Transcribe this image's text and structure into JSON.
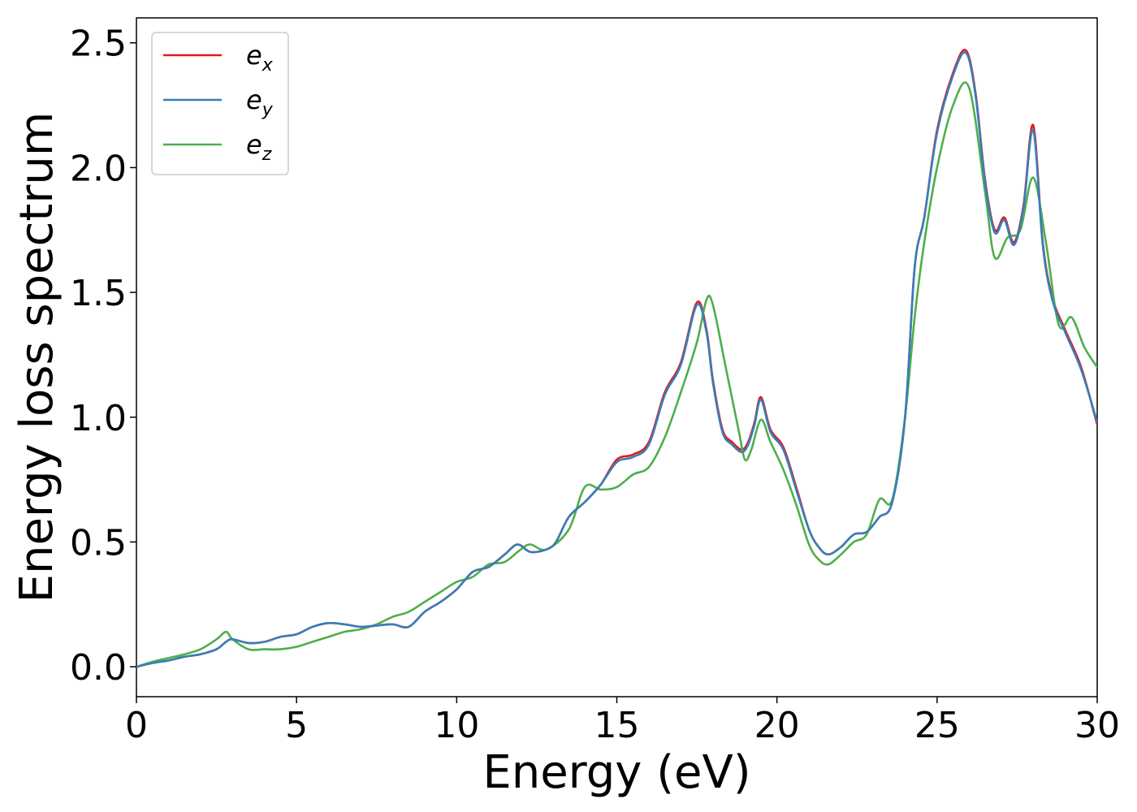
{
  "chart_data": {
    "type": "line",
    "xlabel": "Energy (eV)",
    "ylabel": "Energy loss spectrum",
    "xlim": [
      0,
      30
    ],
    "ylim": [
      -0.12,
      2.6
    ],
    "xticks": [
      0,
      5,
      10,
      15,
      20,
      25,
      30
    ],
    "xtick_labels": [
      "0",
      "5",
      "10",
      "15",
      "20",
      "25",
      "30"
    ],
    "yticks": [
      0.0,
      0.5,
      1.0,
      1.5,
      2.0,
      2.5
    ],
    "ytick_labels": [
      "0.0",
      "0.5",
      "1.0",
      "1.5",
      "2.0",
      "2.5"
    ],
    "grid": false,
    "legend_position": "top-left",
    "series": [
      {
        "name_base": "e",
        "name_sub": "x",
        "color": "#e41a1c",
        "x": [
          0,
          0.5,
          1,
          1.5,
          2,
          2.5,
          2.8,
          3,
          3.5,
          4,
          4.5,
          5,
          5.5,
          6,
          6.5,
          7,
          7.5,
          8,
          8.5,
          9,
          9.5,
          10,
          10.5,
          11,
          11.5,
          11.9,
          12.3,
          12.8,
          13.1,
          13.5,
          14,
          14.5,
          15,
          15.5,
          16,
          16.5,
          17,
          17.5,
          17.8,
          18,
          18.3,
          18.6,
          18.9,
          19.1,
          19.3,
          19.5,
          19.8,
          20.2,
          20.6,
          21,
          21.3,
          21.6,
          22,
          22.4,
          22.8,
          23.2,
          23.6,
          24,
          24.3,
          24.6,
          25,
          25.5,
          25.9,
          26.2,
          26.5,
          26.8,
          27.1,
          27.4,
          27.7,
          28,
          28.3,
          28.6,
          29,
          29.5,
          30
        ],
        "y": [
          0,
          0.015,
          0.025,
          0.04,
          0.05,
          0.07,
          0.1,
          0.11,
          0.095,
          0.1,
          0.12,
          0.13,
          0.16,
          0.175,
          0.17,
          0.16,
          0.165,
          0.17,
          0.16,
          0.22,
          0.26,
          0.31,
          0.38,
          0.4,
          0.45,
          0.49,
          0.46,
          0.47,
          0.5,
          0.6,
          0.66,
          0.73,
          0.83,
          0.85,
          0.9,
          1.1,
          1.22,
          1.46,
          1.35,
          1.15,
          0.95,
          0.9,
          0.87,
          0.9,
          0.98,
          1.08,
          0.95,
          0.88,
          0.72,
          0.55,
          0.48,
          0.45,
          0.48,
          0.53,
          0.54,
          0.6,
          0.66,
          1.0,
          1.6,
          1.8,
          2.15,
          2.38,
          2.47,
          2.3,
          1.95,
          1.75,
          1.8,
          1.7,
          1.85,
          2.17,
          1.7,
          1.48,
          1.35,
          1.2,
          0.97
        ]
      },
      {
        "name_base": "e",
        "name_sub": "y",
        "color": "#377eb8",
        "x": [
          0,
          0.5,
          1,
          1.5,
          2,
          2.5,
          2.8,
          3,
          3.5,
          4,
          4.5,
          5,
          5.5,
          6,
          6.5,
          7,
          7.5,
          8,
          8.5,
          9,
          9.5,
          10,
          10.5,
          11,
          11.5,
          11.9,
          12.3,
          12.8,
          13.1,
          13.5,
          14,
          14.5,
          15,
          15.5,
          16,
          16.5,
          17,
          17.5,
          17.8,
          18,
          18.3,
          18.6,
          18.9,
          19.1,
          19.3,
          19.5,
          19.8,
          20.2,
          20.6,
          21,
          21.3,
          21.6,
          22,
          22.4,
          22.8,
          23.2,
          23.6,
          24,
          24.3,
          24.6,
          25,
          25.5,
          25.9,
          26.2,
          26.5,
          26.8,
          27.1,
          27.4,
          27.7,
          28,
          28.3,
          28.6,
          29,
          29.5,
          30
        ],
        "y": [
          0,
          0.015,
          0.025,
          0.04,
          0.05,
          0.07,
          0.1,
          0.11,
          0.095,
          0.1,
          0.12,
          0.13,
          0.16,
          0.175,
          0.17,
          0.16,
          0.165,
          0.17,
          0.16,
          0.22,
          0.26,
          0.31,
          0.38,
          0.4,
          0.45,
          0.49,
          0.46,
          0.47,
          0.5,
          0.6,
          0.66,
          0.73,
          0.82,
          0.84,
          0.89,
          1.09,
          1.21,
          1.45,
          1.34,
          1.14,
          0.94,
          0.89,
          0.86,
          0.89,
          0.97,
          1.07,
          0.94,
          0.87,
          0.71,
          0.55,
          0.48,
          0.45,
          0.48,
          0.53,
          0.54,
          0.6,
          0.66,
          1.0,
          1.6,
          1.8,
          2.14,
          2.37,
          2.46,
          2.29,
          1.94,
          1.74,
          1.79,
          1.69,
          1.84,
          2.15,
          1.69,
          1.47,
          1.34,
          1.19,
          0.98
        ]
      },
      {
        "name_base": "e",
        "name_sub": "z",
        "color": "#4daf4a",
        "x": [
          0,
          0.5,
          1,
          1.5,
          2,
          2.5,
          2.8,
          3,
          3.5,
          4,
          4.5,
          5,
          5.5,
          6,
          6.5,
          7,
          7.5,
          8,
          8.5,
          9,
          9.5,
          10,
          10.5,
          11,
          11.5,
          12,
          12.3,
          12.8,
          13.5,
          14,
          14.5,
          15,
          15.5,
          16,
          16.5,
          17,
          17.5,
          17.8,
          18,
          18.4,
          18.8,
          19,
          19.2,
          19.5,
          19.8,
          20.2,
          20.6,
          21,
          21.3,
          21.6,
          22,
          22.4,
          22.8,
          23.2,
          23.6,
          24,
          24.3,
          24.6,
          25,
          25.5,
          26,
          26.5,
          26.8,
          27.2,
          27.6,
          28,
          28.4,
          28.8,
          29.2,
          29.6,
          30
        ],
        "y": [
          0,
          0.02,
          0.035,
          0.05,
          0.07,
          0.11,
          0.14,
          0.11,
          0.07,
          0.07,
          0.07,
          0.08,
          0.1,
          0.12,
          0.14,
          0.15,
          0.17,
          0.2,
          0.22,
          0.26,
          0.3,
          0.34,
          0.36,
          0.41,
          0.42,
          0.47,
          0.49,
          0.47,
          0.55,
          0.72,
          0.71,
          0.72,
          0.77,
          0.8,
          0.92,
          1.1,
          1.3,
          1.47,
          1.45,
          1.2,
          0.95,
          0.83,
          0.87,
          0.99,
          0.9,
          0.79,
          0.65,
          0.49,
          0.43,
          0.41,
          0.45,
          0.5,
          0.53,
          0.67,
          0.67,
          1.0,
          1.4,
          1.7,
          2.0,
          2.25,
          2.32,
          1.9,
          1.64,
          1.72,
          1.75,
          1.96,
          1.7,
          1.37,
          1.4,
          1.28,
          1.2
        ]
      }
    ]
  }
}
